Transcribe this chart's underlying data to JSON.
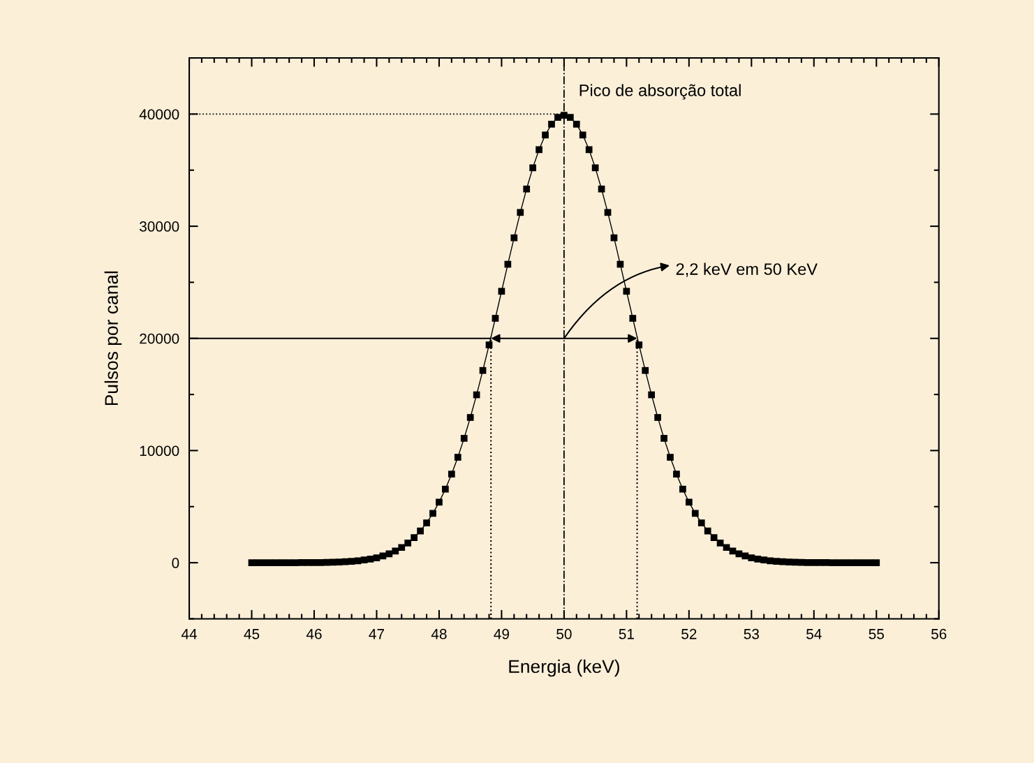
{
  "chart_data": {
    "type": "line",
    "xlabel": "Energia (keV)",
    "ylabel": "Pulsos por canal",
    "x": [
      45.0,
      45.1,
      45.2,
      45.3,
      45.4,
      45.5,
      45.6,
      45.7,
      45.8,
      45.9,
      46.0,
      46.1,
      46.2,
      46.3,
      46.4,
      46.5,
      46.6,
      46.7,
      46.8,
      46.9,
      47.0,
      47.1,
      47.2,
      47.3,
      47.4,
      47.5,
      47.6,
      47.7,
      47.8,
      47.9,
      48.0,
      48.1,
      48.2,
      48.3,
      48.4,
      48.5,
      48.6,
      48.7,
      48.8,
      48.9,
      49.0,
      49.1,
      49.2,
      49.3,
      49.4,
      49.5,
      49.6,
      49.7,
      49.8,
      49.9,
      50.0,
      50.1,
      50.2,
      50.3,
      50.4,
      50.5,
      50.6,
      50.7,
      50.8,
      50.9,
      51.0,
      51.1,
      51.2,
      51.3,
      51.4,
      51.5,
      51.6,
      51.7,
      51.8,
      51.9,
      52.0,
      52.1,
      52.2,
      52.3,
      52.4,
      52.5,
      52.6,
      52.7,
      52.8,
      52.9,
      53.0,
      53.1,
      53.2,
      53.3,
      53.4,
      53.5,
      53.6,
      53.7,
      53.8,
      53.9,
      54.0,
      54.1,
      54.2,
      54.3,
      54.4,
      54.5,
      54.6,
      54.7,
      54.8,
      54.9,
      55.0
    ],
    "series": [
      {
        "color": "#000000",
        "values": [
          0,
          0,
          0,
          0,
          0,
          0,
          0,
          0,
          10,
          10,
          10,
          20,
          30,
          40,
          60,
          90,
          120,
          170,
          240,
          330,
          440,
          600,
          790,
          1040,
          1360,
          1750,
          2240,
          2830,
          3550,
          4400,
          5400,
          6560,
          7900,
          9400,
          11090,
          12950,
          14970,
          17140,
          19420,
          21790,
          24200,
          26610,
          28970,
          31230,
          33320,
          35210,
          36830,
          38140,
          39100,
          39700,
          39890,
          39700,
          39100,
          38140,
          36830,
          35210,
          33320,
          31230,
          28970,
          26610,
          24200,
          21790,
          19420,
          17140,
          14970,
          12950,
          11090,
          9400,
          7900,
          6560,
          5400,
          4400,
          3550,
          2830,
          2240,
          1750,
          1360,
          1040,
          790,
          600,
          440,
          330,
          240,
          170,
          120,
          90,
          60,
          40,
          30,
          20,
          10,
          10,
          10,
          0,
          0,
          0,
          0,
          0,
          0,
          0,
          0
        ]
      }
    ],
    "marker": "square",
    "line_style": "solid",
    "xlim": [
      44,
      56
    ],
    "xticks": [
      44,
      45,
      46,
      47,
      48,
      49,
      50,
      51,
      52,
      53,
      54,
      55,
      56
    ],
    "ylim": [
      -5000,
      45000
    ],
    "yticks": [
      0,
      10000,
      20000,
      30000,
      40000
    ],
    "grid": false,
    "legend": false,
    "ref_lines": [
      {
        "axis": "x",
        "value": 50,
        "line_style": "dashdot",
        "color": "#000000"
      },
      {
        "axis": "x",
        "value": 48.83,
        "line_style": "dotted",
        "color": "#000000"
      },
      {
        "axis": "x",
        "value": 51.17,
        "line_style": "dotted",
        "color": "#000000"
      },
      {
        "axis": "y",
        "value": 40000,
        "line_style": "dotted",
        "color": "#000000"
      },
      {
        "axis": "y",
        "value": 20000,
        "line_style": "solid",
        "color": "#000000"
      }
    ],
    "annotations": [
      {
        "text": "Pico de absorção total",
        "x": 50,
        "y": 40000
      },
      {
        "text": "2,2 keV em 50 KeV",
        "x": 50,
        "y": 20000
      }
    ]
  }
}
